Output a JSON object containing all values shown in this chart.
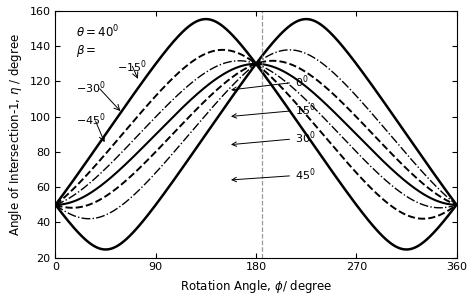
{
  "theta_deg": 40,
  "beta_values": [
    -45,
    -30,
    -15,
    0,
    15,
    30,
    45
  ],
  "xlim": [
    0,
    360
  ],
  "ylim": [
    20,
    160
  ],
  "xticks": [
    0,
    90,
    180,
    270,
    360
  ],
  "yticks": [
    20,
    40,
    60,
    80,
    100,
    120,
    140,
    160
  ],
  "xlabel": "Rotation Angle, $\\phi$/ degree",
  "ylabel": "Angle of Intersection-1, $\\eta$ / degree",
  "vline_x": 185,
  "line_styles": {
    "-45": "solid",
    "-30": "dashed",
    "-15": "dashdot",
    "0": "solid",
    "15": "dashed",
    "30": "dashdot",
    "45": "solid"
  },
  "line_widths": {
    "-45": 1.8,
    "-30": 1.4,
    "-15": 1.0,
    "0": 1.5,
    "15": 1.4,
    "30": 1.0,
    "45": 1.8
  },
  "background_color": "#ffffff",
  "line_color": "#000000"
}
